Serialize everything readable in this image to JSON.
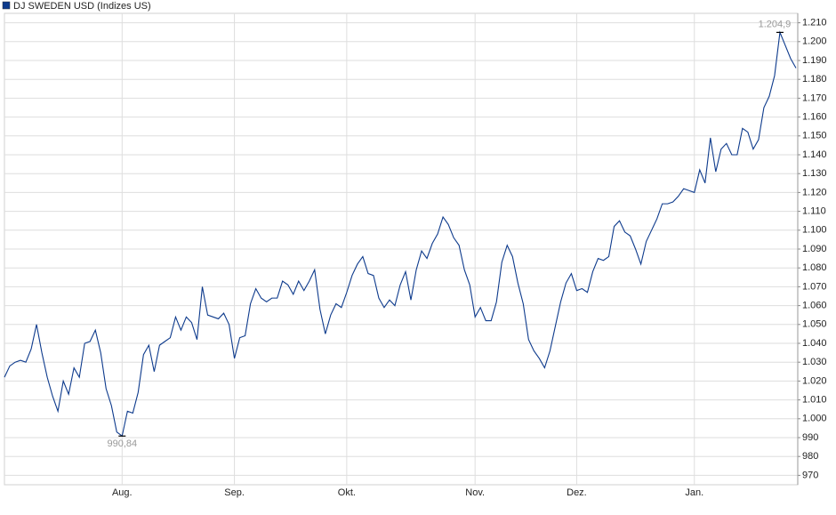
{
  "chart_data": {
    "type": "line",
    "categories": [
      null,
      null,
      null,
      null,
      null,
      null,
      null,
      null,
      null,
      null,
      null,
      null,
      null,
      null,
      null,
      null,
      null,
      null,
      null,
      null,
      null,
      null,
      "Aug.",
      null,
      null,
      null,
      null,
      null,
      null,
      null,
      null,
      null,
      null,
      null,
      null,
      null,
      null,
      null,
      null,
      null,
      null,
      null,
      null,
      "Sep.",
      null,
      null,
      null,
      null,
      null,
      null,
      null,
      null,
      null,
      null,
      null,
      null,
      null,
      null,
      null,
      null,
      null,
      null,
      null,
      null,
      "Okt.",
      null,
      null,
      null,
      null,
      null,
      null,
      null,
      null,
      null,
      null,
      null,
      null,
      null,
      null,
      null,
      null,
      null,
      null,
      null,
      null,
      null,
      null,
      null,
      "Nov.",
      null,
      null,
      null,
      null,
      null,
      null,
      null,
      null,
      null,
      null,
      null,
      null,
      null,
      null,
      null,
      null,
      null,
      null,
      "Dez.",
      null,
      null,
      null,
      null,
      null,
      null,
      null,
      null,
      null,
      null,
      null,
      null,
      null,
      null,
      null,
      null,
      null,
      null,
      null,
      null,
      null,
      "Jan.",
      null,
      null,
      null,
      null,
      null,
      null,
      null,
      null,
      null,
      null,
      null,
      null,
      null,
      null,
      null,
      null,
      null,
      null,
      null
    ],
    "series": [
      {
        "name": "DJ SWEDEN USD (Indizes US)",
        "color": "#0d3a8c",
        "values": [
          1022,
          1028,
          1030,
          1031,
          1030,
          1037,
          1050,
          1035,
          1022,
          1012,
          1004,
          1020,
          1013,
          1027,
          1022,
          1040,
          1041,
          1047,
          1035,
          1016,
          1007,
          993,
          990.84,
          1004,
          1003,
          1014,
          1034,
          1039,
          1025,
          1039,
          1041,
          1043,
          1054,
          1047,
          1054,
          1051,
          1042,
          1070,
          1055,
          1054,
          1053,
          1056,
          1050,
          1032,
          1043,
          1044,
          1061,
          1069,
          1064,
          1062,
          1064,
          1064,
          1073,
          1071,
          1066,
          1073,
          1068,
          1073,
          1079,
          1058,
          1045,
          1055,
          1061,
          1059,
          1067,
          1076,
          1082,
          1086,
          1077,
          1076,
          1064,
          1059,
          1063,
          1060,
          1071,
          1078,
          1063,
          1079,
          1089,
          1085,
          1093,
          1098,
          1107,
          1103,
          1096,
          1092,
          1079,
          1071,
          1054,
          1059,
          1052,
          1052,
          1062,
          1083,
          1092,
          1086,
          1072,
          1061,
          1042,
          1036,
          1032,
          1027,
          1036,
          1049,
          1062,
          1072,
          1077,
          1068,
          1069,
          1067,
          1078,
          1085,
          1084,
          1086,
          1102,
          1105,
          1099,
          1097,
          1090,
          1082,
          1094,
          1100,
          1106,
          1114,
          1114,
          1115,
          1118,
          1122,
          1121,
          1120,
          1132,
          1125,
          1149,
          1131,
          1143,
          1146,
          1140,
          1140,
          1154,
          1152,
          1143,
          1148,
          1165,
          1171,
          1182,
          1204.9,
          1198,
          1191,
          1186
        ],
        "value_labels": [
          null,
          null,
          null,
          null,
          null,
          null,
          null,
          null,
          null,
          null,
          null,
          null,
          null,
          null,
          null,
          null,
          null,
          null,
          null,
          null,
          null,
          null,
          "990,84",
          null,
          null,
          null,
          null,
          null,
          null,
          null,
          null,
          null,
          null,
          null,
          null,
          null,
          null,
          null,
          null,
          null,
          null,
          null,
          null,
          null,
          null,
          null,
          null,
          null,
          null,
          null,
          null,
          null,
          null,
          null,
          null,
          null,
          null,
          null,
          null,
          null,
          null,
          null,
          null,
          null,
          null,
          null,
          null,
          null,
          null,
          null,
          null,
          null,
          null,
          null,
          null,
          null,
          null,
          null,
          null,
          null,
          null,
          null,
          null,
          null,
          null,
          null,
          null,
          null,
          null,
          null,
          null,
          null,
          null,
          null,
          null,
          null,
          null,
          null,
          null,
          null,
          null,
          null,
          null,
          null,
          null,
          null,
          null,
          null,
          null,
          null,
          null,
          null,
          null,
          null,
          null,
          null,
          null,
          null,
          null,
          null,
          null,
          null,
          null,
          null,
          null,
          null,
          null,
          null,
          null,
          null,
          null,
          null,
          null,
          null,
          null,
          null,
          null,
          null,
          null,
          null,
          null,
          null,
          null,
          null,
          null,
          "1.204,9",
          null,
          null,
          null
        ]
      }
    ],
    "ylim": [
      965,
      1215
    ],
    "yticks": [
      970,
      980,
      990,
      {
        "value": 1000,
        "label": "1.000"
      },
      {
        "value": 1010,
        "label": "1.010"
      },
      {
        "value": 1020,
        "label": "1.020"
      },
      {
        "value": 1030,
        "label": "1.030"
      },
      {
        "value": 1040,
        "label": "1.040"
      },
      {
        "value": 1050,
        "label": "1.050"
      },
      {
        "value": 1060,
        "label": "1.060"
      },
      {
        "value": 1070,
        "label": "1.070"
      },
      {
        "value": 1080,
        "label": "1.080"
      },
      {
        "value": 1090,
        "label": "1.090"
      },
      {
        "value": 1100,
        "label": "1.100"
      },
      {
        "value": 1110,
        "label": "1.110"
      },
      {
        "value": 1120,
        "label": "1.120"
      },
      {
        "value": 1130,
        "label": "1.130"
      },
      {
        "value": 1140,
        "label": "1.140"
      },
      {
        "value": 1150,
        "label": "1.150"
      },
      {
        "value": 1160,
        "label": "1.160"
      },
      {
        "value": 1170,
        "label": "1.170"
      },
      {
        "value": 1180,
        "label": "1.180"
      },
      {
        "value": 1190,
        "label": "1.190"
      },
      {
        "value": 1200,
        "label": "1.200"
      },
      {
        "value": 1210,
        "label": "1.210"
      }
    ],
    "grid": true,
    "legend": "top-left"
  }
}
